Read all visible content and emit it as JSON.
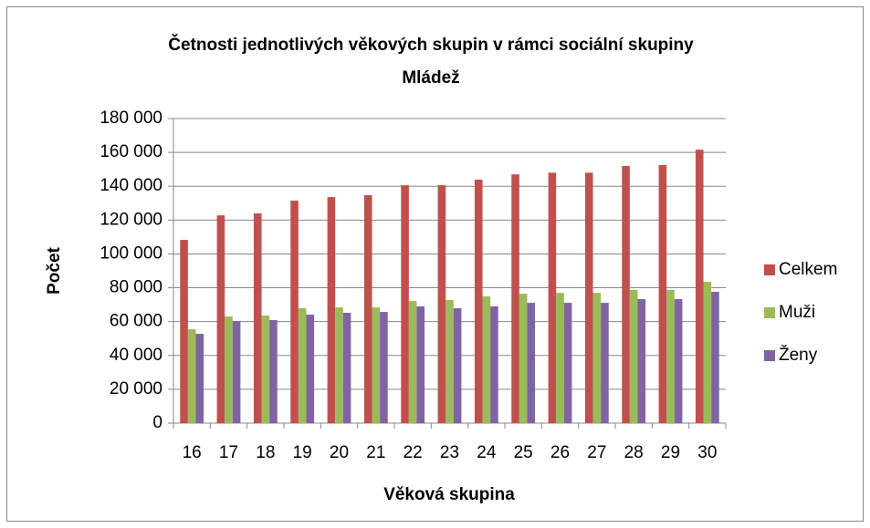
{
  "chart_data": {
    "type": "bar",
    "title": [
      "Četnosti jednotlivých věkových skupin v rámci sociální skupiny",
      "Mládež"
    ],
    "x_label": "Věková skupina",
    "y_label": "Počet",
    "categories": [
      "16",
      "17",
      "18",
      "19",
      "20",
      "21",
      "22",
      "23",
      "24",
      "25",
      "26",
      "27",
      "28",
      "29",
      "30"
    ],
    "series": [
      {
        "name": "Celkem",
        "color": "#c0504d",
        "values": [
          108300,
          122800,
          124000,
          131500,
          133600,
          134700,
          140600,
          140600,
          143900,
          147000,
          148000,
          148000,
          152000,
          152500,
          161600
        ]
      },
      {
        "name": "Muži",
        "color": "#9bbb59",
        "values": [
          55500,
          63000,
          63600,
          67900,
          68400,
          68400,
          72200,
          72700,
          74900,
          76500,
          77000,
          77000,
          78700,
          78700,
          83500
        ]
      },
      {
        "name": "Ženy",
        "color": "#8064a2",
        "values": [
          52800,
          60300,
          60900,
          64100,
          65200,
          65700,
          69000,
          67900,
          69000,
          71100,
          71100,
          71100,
          73300,
          73300,
          77600
        ]
      }
    ],
    "ylim": [
      0,
      180000
    ],
    "yticks": [
      0,
      {
        "value": 20000,
        "label": "20 000"
      },
      {
        "value": 40000,
        "label": "40 000"
      },
      {
        "value": 60000,
        "label": "60 000"
      },
      {
        "value": 80000,
        "label": "80 000"
      },
      {
        "value": 100000,
        "label": "100 000"
      },
      {
        "value": 120000,
        "label": "120 000"
      },
      {
        "value": 140000,
        "label": "140 000"
      },
      {
        "value": 160000,
        "label": "160 000"
      },
      {
        "value": 180000,
        "label": "180 000"
      }
    ],
    "grid": true,
    "legend": "right"
  }
}
